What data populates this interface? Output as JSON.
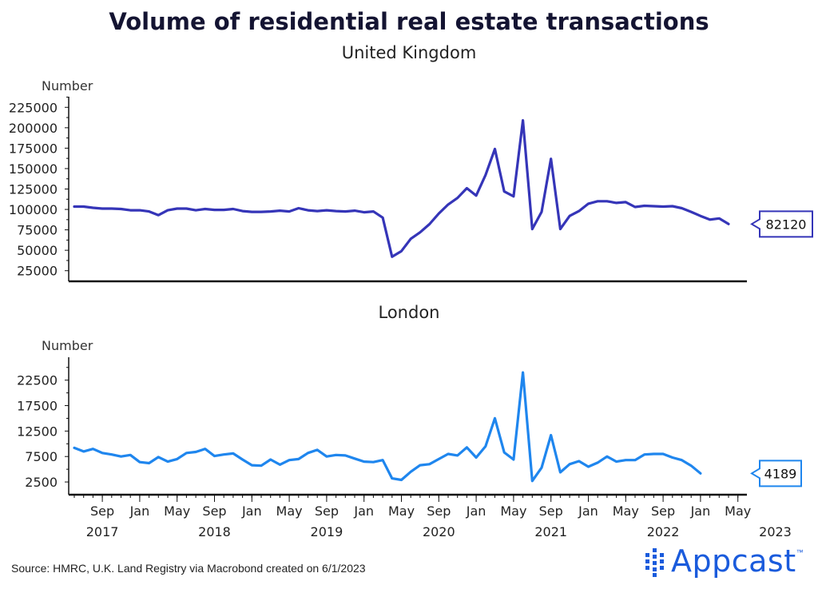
{
  "title": "Volume of residential real estate transactions",
  "source": "Source: HMRC, U.K. Land Registry via Macrobond created on 6/1/2023",
  "brand": {
    "name": "Appcast",
    "tm": "™",
    "color": "#1a5bdc"
  },
  "x_axis": {
    "months": [
      "Sep",
      "Jan",
      "May",
      "Sep",
      "Jan",
      "May",
      "Sep",
      "Jan",
      "May",
      "Sep",
      "Jan",
      "May",
      "Sep",
      "Jan",
      "May",
      "Sep",
      "Jan",
      "May"
    ],
    "years": [
      "2017",
      "2018",
      "2019",
      "2020",
      "2021",
      "2022",
      "2023"
    ]
  },
  "chart_data": [
    {
      "type": "line",
      "title": "United Kingdom",
      "ylabel": "Number",
      "color": "#3535b8",
      "ylim": [
        12000,
        238000
      ],
      "yticks": [
        25000,
        50000,
        75000,
        100000,
        125000,
        150000,
        175000,
        200000,
        225000
      ],
      "ytick_labels": [
        "25000",
        "50000",
        "75000",
        "100000",
        "125000",
        "150000",
        "175000",
        "200000",
        "225000"
      ],
      "start": "2017-06",
      "end_label": "82120",
      "values": [
        103500,
        103500,
        102000,
        101000,
        101000,
        100500,
        99000,
        99000,
        97500,
        93000,
        99000,
        101000,
        101000,
        99000,
        100500,
        99500,
        99500,
        100500,
        98000,
        97000,
        97000,
        97500,
        98500,
        97500,
        101500,
        99000,
        98000,
        99000,
        98000,
        97500,
        98500,
        96500,
        97500,
        90000,
        42000,
        49000,
        64000,
        72000,
        82000,
        95000,
        106000,
        114000,
        126000,
        117000,
        142000,
        174000,
        122000,
        116000,
        209000,
        76000,
        97000,
        162000,
        76000,
        92000,
        98000,
        107000,
        110000,
        110000,
        108000,
        109000,
        103000,
        104500,
        104000,
        103500,
        104000,
        101500,
        97000,
        92000,
        87500,
        89000,
        82120
      ]
    },
    {
      "type": "line",
      "title": "London",
      "ylabel": "Number",
      "color": "#1f86ee",
      "ylim": [
        0,
        27000
      ],
      "yticks": [
        2500,
        7500,
        12500,
        17500,
        22500
      ],
      "ytick_labels": [
        "2500",
        "7500",
        "12500",
        "17500",
        "22500"
      ],
      "start": "2017-06",
      "end_label": "4189",
      "values": [
        9200,
        8500,
        9000,
        8200,
        7900,
        7500,
        7800,
        6400,
        6200,
        7400,
        6500,
        7000,
        8200,
        8400,
        9000,
        7600,
        7900,
        8100,
        6900,
        5800,
        5700,
        6900,
        5900,
        6800,
        7000,
        8200,
        8800,
        7500,
        7800,
        7700,
        7100,
        6500,
        6400,
        6800,
        3200,
        2900,
        4500,
        5800,
        6000,
        7000,
        8000,
        7700,
        9300,
        7300,
        9500,
        15000,
        8300,
        6900,
        24000,
        2700,
        5300,
        11700,
        4400,
        6000,
        6600,
        5500,
        6300,
        7500,
        6500,
        6800,
        6800,
        7900,
        8000,
        8000,
        7300,
        6800,
        5700,
        4189
      ]
    }
  ]
}
